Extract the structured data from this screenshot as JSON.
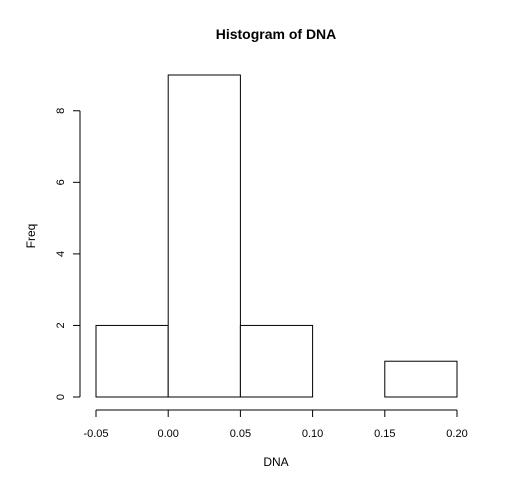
{
  "chart_data": {
    "type": "bar",
    "title": "Histogram of DNA",
    "xlabel": "DNA",
    "ylabel": "Freq",
    "bins": [
      {
        "from": -0.05,
        "to": 0.0,
        "count": 2
      },
      {
        "from": 0.0,
        "to": 0.05,
        "count": 9
      },
      {
        "from": 0.05,
        "to": 0.1,
        "count": 2
      },
      {
        "from": 0.1,
        "to": 0.15,
        "count": 0
      },
      {
        "from": 0.15,
        "to": 0.2,
        "count": 1
      }
    ],
    "xlim": [
      -0.05,
      0.2
    ],
    "ylim": [
      0,
      9
    ],
    "x_ticks": [
      -0.05,
      0.0,
      0.05,
      0.1,
      0.15,
      0.2
    ],
    "x_tick_labels": [
      "-0.05",
      "0.00",
      "0.05",
      "0.10",
      "0.15",
      "0.20"
    ],
    "y_ticks": [
      0,
      2,
      4,
      6,
      8
    ],
    "y_tick_labels": [
      "0",
      "2",
      "4",
      "6",
      "8"
    ],
    "grid": false,
    "colors": {
      "bar_fill": "#ffffff",
      "bar_stroke": "#000000"
    }
  }
}
